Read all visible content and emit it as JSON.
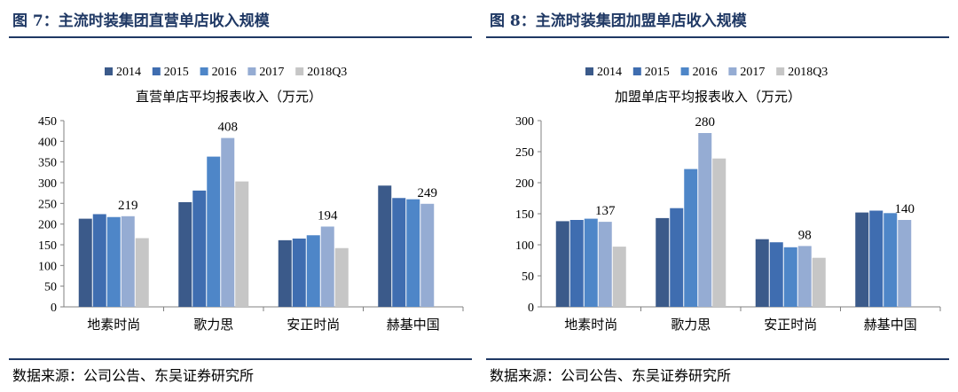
{
  "left": {
    "figure_title": "图 7：主流时装集团直营单店收入规模",
    "source": "数据来源：公司公告、东吴证券研究所"
  },
  "right": {
    "figure_title": "图 8：主流时装集团加盟单店收入规模",
    "source": "数据来源：公司公告、东吴证券研究所"
  },
  "colors": [
    "#3b5a8a",
    "#3f6db0",
    "#4e86c8",
    "#95acd3",
    "#c6c6c6"
  ],
  "chart_data": [
    {
      "type": "bar",
      "title": "直营单店平均报表收入（万元）",
      "categories": [
        "地素时尚",
        "歌力思",
        "安正时尚",
        "赫基中国"
      ],
      "series": [
        {
          "name": "2014",
          "values": [
            213,
            253,
            161,
            293
          ]
        },
        {
          "name": "2015",
          "values": [
            224,
            281,
            165,
            263
          ]
        },
        {
          "name": "2016",
          "values": [
            217,
            363,
            173,
            260
          ]
        },
        {
          "name": "2017",
          "values": [
            219,
            408,
            194,
            249
          ]
        },
        {
          "name": "2018Q3",
          "values": [
            166,
            303,
            142,
            null
          ]
        }
      ],
      "data_labels": [
        {
          "category": "地素时尚",
          "series": "2017",
          "text": "219"
        },
        {
          "category": "歌力思",
          "series": "2017",
          "text": "408"
        },
        {
          "category": "安正时尚",
          "series": "2017",
          "text": "194"
        },
        {
          "category": "赫基中国",
          "series": "2017",
          "text": "249"
        }
      ],
      "ylim": [
        0,
        450
      ],
      "yticks": [
        0,
        50,
        100,
        150,
        200,
        250,
        300,
        350,
        400,
        450
      ],
      "legend": "top",
      "grid": false
    },
    {
      "type": "bar",
      "title": "加盟单店平均报表收入（万元）",
      "categories": [
        "地素时尚",
        "歌力思",
        "安正时尚",
        "赫基中国"
      ],
      "series": [
        {
          "name": "2014",
          "values": [
            138,
            143,
            109,
            152
          ]
        },
        {
          "name": "2015",
          "values": [
            140,
            159,
            104,
            155
          ]
        },
        {
          "name": "2016",
          "values": [
            142,
            222,
            96,
            151
          ]
        },
        {
          "name": "2017",
          "values": [
            137,
            280,
            98,
            140
          ]
        },
        {
          "name": "2018Q3",
          "values": [
            97,
            239,
            79,
            null
          ]
        }
      ],
      "data_labels": [
        {
          "category": "地素时尚",
          "series": "2017",
          "text": "137"
        },
        {
          "category": "歌力思",
          "series": "2017",
          "text": "280"
        },
        {
          "category": "安正时尚",
          "series": "2017",
          "text": "98"
        },
        {
          "category": "赫基中国",
          "series": "2017",
          "text": "140"
        }
      ],
      "ylim": [
        0,
        300
      ],
      "yticks": [
        0,
        50,
        100,
        150,
        200,
        250,
        300
      ],
      "legend": "top",
      "grid": false
    }
  ]
}
